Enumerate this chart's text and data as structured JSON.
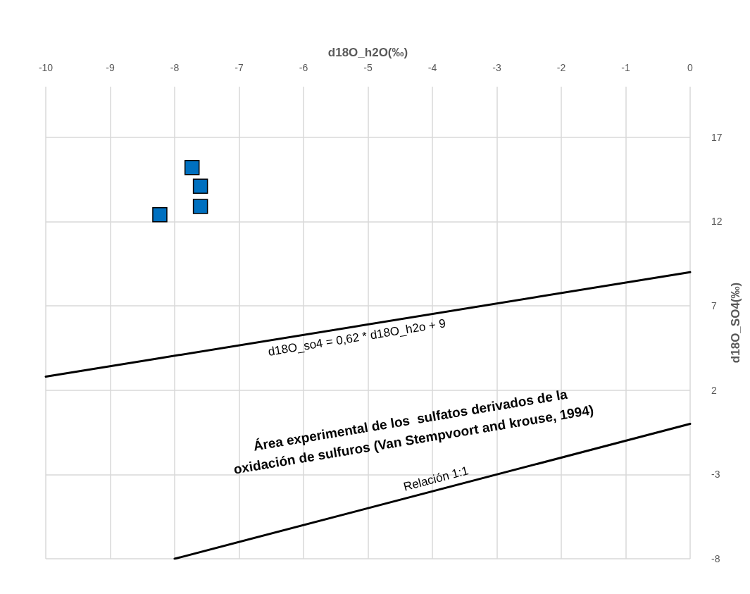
{
  "chart_data": {
    "type": "scatter",
    "xlabel": "d18O_h2O(‰)",
    "ylabel": "d18O_SO4(‰)",
    "xlim": [
      -10,
      0
    ],
    "xticks": [
      -10,
      -9,
      -8,
      -7,
      -6,
      -5,
      -4,
      -3,
      -2,
      -1,
      0
    ],
    "ylim": [
      -8,
      20
    ],
    "yticks": [
      -8,
      -3,
      2,
      7,
      12,
      17
    ],
    "grid": true,
    "marker": "square",
    "series": [
      {
        "color": "#0070c0",
        "x": [
          -7.73,
          -7.6,
          -7.6,
          -8.23
        ],
        "values": [
          15.2,
          14.1,
          12.9,
          12.4
        ]
      },
      {
        "type": "line",
        "color": "#000000",
        "marker": "none",
        "x": [
          -10,
          0
        ],
        "values": [
          2.8,
          9
        ]
      },
      {
        "type": "line",
        "color": "#000000",
        "marker": "none",
        "x": [
          -8,
          0
        ],
        "values": [
          -8,
          0
        ]
      }
    ],
    "annotations": [
      {
        "text": "d18O_so4 = 0,62 * d18O_h2o + 9",
        "x": -5.2,
        "y": 5.78
      },
      "Área experimental de los  sulfatos derivados de la\noxidación de sulfuros (Van Stempvoort and krouse, 1994)",
      {
        "text": "Relación 1:1",
        "x": -3.9,
        "y": -3.9
      }
    ]
  }
}
